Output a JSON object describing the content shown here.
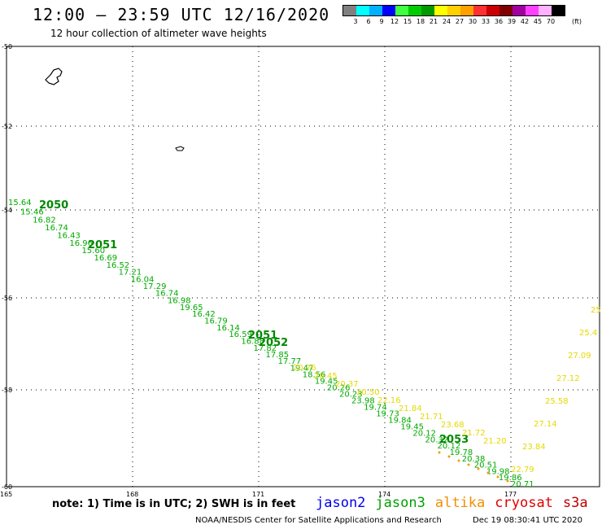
{
  "header": {
    "title": "12:00 – 23:59 UTC 12/16/2020",
    "subtitle": "12 hour collection of altimeter wave heights"
  },
  "legend": {
    "colors": [
      "#808080",
      "#00ffff",
      "#00b0ff",
      "#0000ff",
      "#40ff40",
      "#00cc00",
      "#009900",
      "#ffff00",
      "#ffd000",
      "#ffa000",
      "#ff3030",
      "#cc0000",
      "#800000",
      "#a000a0",
      "#ff40ff",
      "#ffb0ff",
      "#000000"
    ],
    "labels": [
      "3",
      "6",
      "9",
      "12",
      "15",
      "18",
      "21",
      "24",
      "27",
      "30",
      "33",
      "36",
      "39",
      "42",
      "45",
      "70"
    ],
    "unit": "(ft)"
  },
  "map": {
    "lat_labels": [
      "-50",
      "-52",
      "-54",
      "-56",
      "-58",
      "-60"
    ],
    "lon_labels": [
      "165",
      "168",
      "171",
      "174",
      "177"
    ]
  },
  "tracks": {
    "green": {
      "color": "#00aa00",
      "readings": [
        "15.64",
        "15.46",
        "16.82",
        "16.74",
        "16.43",
        "16.96",
        "15.60",
        "16.69",
        "16.52",
        "17.21",
        "16.04",
        "17.29",
        "16.74",
        "16.98",
        "19.65",
        "16.42",
        "16.79",
        "16.14",
        "16.59",
        "16.88",
        "17.82",
        "17.85",
        "17.77",
        "19.47",
        "18.56",
        "19.45",
        "20.26",
        "20.23",
        "23.98",
        "19.74",
        "19.73",
        "19.84",
        "19.45",
        "20.12",
        "20.32",
        "20.12",
        "19.78",
        "20.38",
        "20.51",
        "19.98",
        "19.86",
        "20.71"
      ],
      "times": [
        "2050",
        "2051",
        "2051",
        "2052",
        "2053"
      ]
    },
    "yellow": {
      "color": "#e6d800",
      "readings": [
        "20.76",
        "20.45",
        "20.37",
        "20.50",
        "22.16",
        "21.84",
        "21.71",
        "23.68",
        "21.72",
        "21.20",
        "22.79",
        "23.84",
        "27.14",
        "25.58",
        "27.12",
        "27.09",
        "25.4",
        "25"
      ]
    },
    "orange": {
      "color": "#f0a000"
    }
  },
  "footer": {
    "note": "note: 1) Time is in UTC; 2) SWH is in feet",
    "satellites": [
      {
        "name": "jason2",
        "color": "#0000ee"
      },
      {
        "name": "jason3",
        "color": "#00a000"
      },
      {
        "name": "altika",
        "color": "#f09000"
      },
      {
        "name": "cryosat",
        "color": "#e00000"
      },
      {
        "name": "s3a",
        "color": "#c00000"
      }
    ],
    "credit": "NOAA/NESDIS Center for Satellite Applications and Research",
    "timestamp": "Dec 19 08:30:41 UTC 2020"
  }
}
